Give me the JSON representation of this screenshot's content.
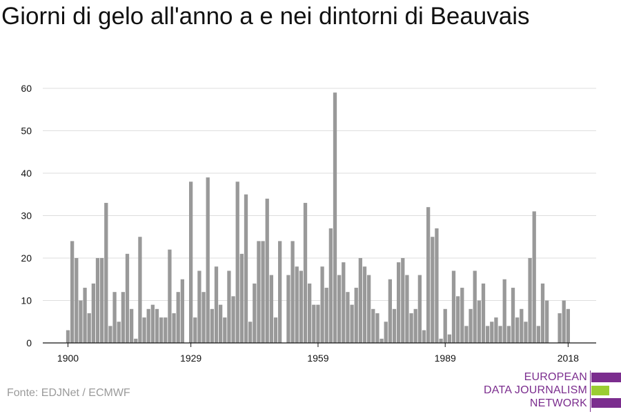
{
  "title": "Giorni di gelo all'anno a e nei dintorni di Beauvais",
  "source": "Fonte: EDJNet / ECMWF",
  "logo": {
    "line1": "EUROPEAN",
    "line2": "DATA JOURNALISM",
    "line3": "NETWORK",
    "colors": [
      "#7b2d8e",
      "#9acd32",
      "#7b2d8e"
    ]
  },
  "chart_data": {
    "type": "bar",
    "title": "Giorni di gelo all'anno a e nei dintorni di Beauvais",
    "xlabel": "",
    "ylabel": "",
    "ylim": [
      0,
      60
    ],
    "yticks": [
      0,
      10,
      20,
      30,
      40,
      50,
      60
    ],
    "xticks": [
      1900,
      1929,
      1959,
      1989,
      2018
    ],
    "grid": true,
    "bar_color": "#999999",
    "x": [
      1900,
      1901,
      1902,
      1903,
      1904,
      1905,
      1906,
      1907,
      1908,
      1909,
      1910,
      1911,
      1912,
      1913,
      1914,
      1915,
      1916,
      1917,
      1918,
      1919,
      1920,
      1921,
      1922,
      1923,
      1924,
      1925,
      1926,
      1927,
      1928,
      1929,
      1930,
      1931,
      1932,
      1933,
      1934,
      1935,
      1936,
      1937,
      1938,
      1939,
      1940,
      1941,
      1942,
      1943,
      1944,
      1945,
      1946,
      1947,
      1948,
      1949,
      1950,
      1951,
      1952,
      1953,
      1954,
      1955,
      1956,
      1957,
      1958,
      1959,
      1960,
      1961,
      1962,
      1963,
      1964,
      1965,
      1966,
      1967,
      1968,
      1969,
      1970,
      1971,
      1972,
      1973,
      1974,
      1975,
      1976,
      1977,
      1978,
      1979,
      1980,
      1981,
      1982,
      1983,
      1984,
      1985,
      1986,
      1987,
      1988,
      1989,
      1990,
      1991,
      1992,
      1993,
      1994,
      1995,
      1996,
      1997,
      1998,
      1999,
      2000,
      2001,
      2002,
      2003,
      2004,
      2005,
      2006,
      2007,
      2008,
      2009,
      2010,
      2011,
      2012,
      2013,
      2014,
      2015,
      2016,
      2017,
      2018,
      2019
    ],
    "values": [
      3,
      24,
      20,
      10,
      13,
      7,
      14,
      20,
      20,
      33,
      4,
      12,
      5,
      12,
      21,
      8,
      1,
      25,
      6,
      8,
      9,
      8,
      6,
      6,
      22,
      7,
      12,
      15,
      0,
      38,
      6,
      17,
      12,
      39,
      8,
      18,
      9,
      6,
      17,
      11,
      38,
      21,
      35,
      5,
      14,
      24,
      24,
      34,
      16,
      6,
      24,
      0,
      16,
      24,
      18,
      17,
      33,
      14,
      9,
      9,
      18,
      13,
      27,
      59,
      16,
      19,
      12,
      9,
      13,
      20,
      18,
      16,
      8,
      7,
      1,
      5,
      15,
      8,
      19,
      20,
      16,
      7,
      8,
      16,
      3,
      32,
      25,
      27,
      1,
      8,
      2,
      17,
      11,
      13,
      4,
      8,
      17,
      10,
      14,
      4,
      5,
      6,
      4,
      15,
      4,
      13,
      6,
      8,
      5,
      20,
      31,
      4,
      14,
      10,
      0,
      0,
      7,
      10,
      8,
      0
    ]
  }
}
